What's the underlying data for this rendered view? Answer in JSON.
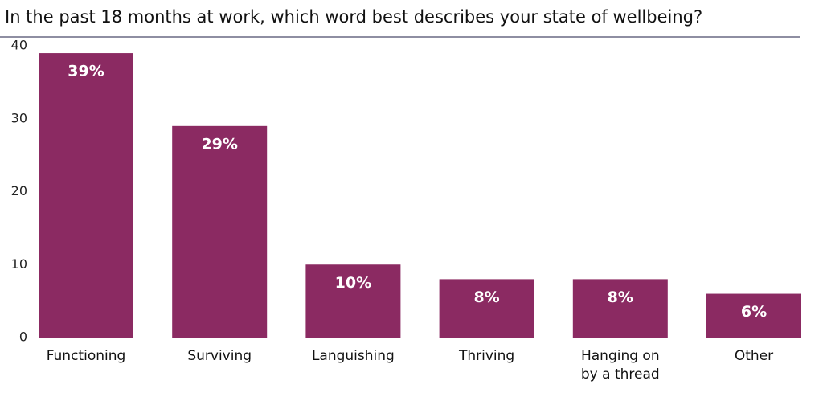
{
  "chart_data": {
    "type": "bar",
    "title": "In the past 18 months at work, which word best describes your state of wellbeing?",
    "categories": [
      "Functioning",
      "Surviving",
      "Languishing",
      "Thriving",
      "Hanging on by a thread",
      "Other"
    ],
    "values": [
      39,
      29,
      10,
      8,
      8,
      6
    ],
    "value_labels": [
      "39%",
      "29%",
      "10%",
      "8%",
      "8%",
      "6%"
    ],
    "color": "#8b2a62",
    "ylim": [
      0,
      40
    ],
    "yticks": [
      0,
      10,
      20,
      30,
      40
    ],
    "grid": false
  }
}
